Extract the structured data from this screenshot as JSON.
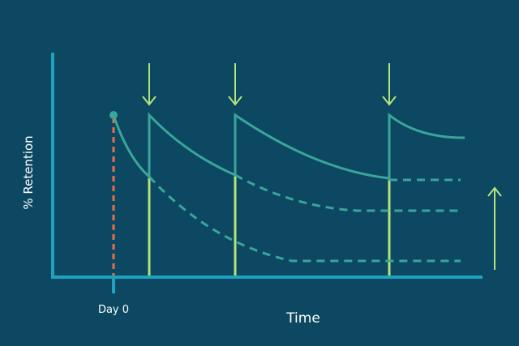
{
  "y_axis_label": "% Retention",
  "x_axis_label": "Time",
  "start_label": "Day 0"
}
